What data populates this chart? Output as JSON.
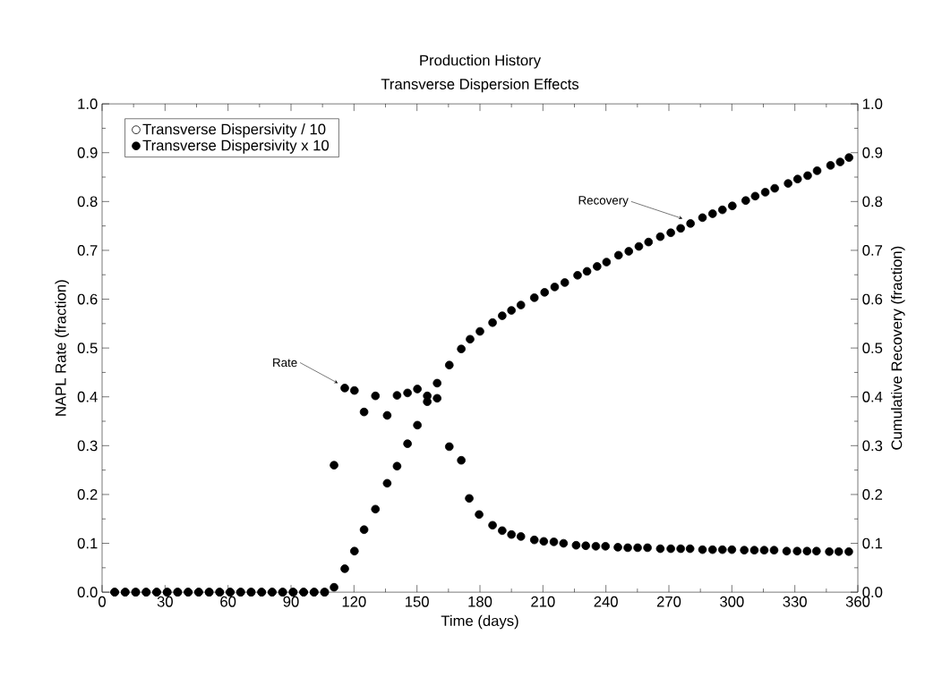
{
  "chart_data": {
    "type": "scatter",
    "title": "Production History",
    "subtitle": "Transverse Dispersion Effects",
    "xlabel": "Time (days)",
    "ylabel": "NAPL Rate (fraction)",
    "y2label": "Cumulative Recovery (fraction)",
    "marker": "circle",
    "legend": "top left",
    "xlim": [
      0,
      360
    ],
    "xticks": [
      0,
      30,
      60,
      90,
      120,
      150,
      180,
      210,
      240,
      270,
      300,
      330,
      360
    ],
    "ylim": [
      0,
      1
    ],
    "yticks": [
      {
        "value": 0,
        "label": "0.0"
      },
      0.1,
      0.2,
      0.3,
      0.4,
      0.5,
      0.6,
      0.7,
      0.8,
      0.9,
      {
        "value": 1,
        "label": "1.0"
      }
    ],
    "y2lim": [
      0,
      1
    ],
    "y2ticks": [
      {
        "value": 0,
        "label": "0.0"
      },
      0.1,
      0.2,
      0.3,
      0.4,
      0.5,
      0.6,
      0.7,
      0.8,
      0.9,
      {
        "value": 1,
        "label": "1.0"
      }
    ],
    "annotations": [
      "Rate",
      "Recovery"
    ],
    "series": [
      {
        "name": "Transverse Dispersivity / 10",
        "color": "#ffffff"
      },
      {
        "name": "Transverse Dispersivity x 10",
        "color": "#000000",
        "x": [
          6,
          11,
          16,
          21,
          26,
          31,
          36,
          41,
          46,
          51,
          56,
          61,
          66,
          71,
          76,
          81,
          86,
          91,
          96,
          101,
          106,
          110.5,
          115.6,
          120.2,
          124.8,
          130.2,
          135.8,
          140.5,
          145.5,
          150.2,
          154.9,
          159.6,
          165.4,
          171.1,
          174.9,
          179.6,
          186.0,
          190.6,
          195.0,
          199.5,
          205.9,
          210.4,
          215.2,
          219.8,
          225.8,
          230.4,
          235.2,
          239.8,
          245.7,
          250.4,
          255.1,
          259.8,
          265.9,
          270.9,
          275.6,
          280.1,
          286.0,
          290.8,
          295.5,
          300.0,
          305.9,
          310.7,
          315.4,
          320.1,
          326.1,
          331.1,
          335.8,
          340.3,
          346.4,
          350.9,
          355.7
        ],
        "values": [
          0,
          0,
          0,
          0,
          0,
          0,
          0,
          0,
          0,
          0,
          0,
          0,
          0,
          0,
          0,
          0,
          0,
          0,
          0,
          0,
          0,
          0.26,
          0.418,
          0.413,
          0.369,
          0.402,
          0.362,
          0.403,
          0.408,
          0.416,
          0.402,
          0.397,
          0.298,
          0.27,
          0.192,
          0.159,
          0.137,
          0.126,
          0.118,
          0.114,
          0.107,
          0.104,
          0.103,
          0.1,
          0.096,
          0.095,
          0.094,
          0.094,
          0.092,
          0.091,
          0.091,
          0.091,
          0.089,
          0.089,
          0.089,
          0.089,
          0.087,
          0.087,
          0.087,
          0.087,
          0.086,
          0.086,
          0.086,
          0.086,
          0.084,
          0.084,
          0.084,
          0.084,
          0.083,
          0.083,
          0.083
        ]
      },
      {
        "color": "#000000",
        "axis": "y2",
        "x": [
          6,
          11,
          16,
          21,
          26,
          31,
          36,
          41,
          46,
          51,
          56,
          61,
          66,
          71,
          76,
          81,
          86,
          91,
          96,
          101,
          106,
          110.5,
          115.6,
          120.2,
          124.8,
          130.2,
          135.8,
          140.5,
          145.5,
          150.2,
          154.9,
          159.6,
          165.4,
          171.1,
          175.3,
          180.0,
          186.0,
          190.6,
          195.0,
          199.5,
          205.9,
          210.8,
          215.6,
          220.4,
          226.5,
          231.0,
          235.8,
          240.3,
          246.0,
          250.9,
          255.7,
          260.3,
          265.9,
          270.9,
          275.6,
          280.3,
          286.0,
          290.8,
          295.5,
          300.2,
          306.6,
          311.1,
          315.9,
          320.4,
          326.8,
          331.3,
          336.1,
          340.6,
          347.0,
          351.6,
          355.8
        ],
        "values": [
          0,
          0,
          0,
          0,
          0,
          0,
          0,
          0,
          0,
          0,
          0,
          0,
          0,
          0,
          0,
          0,
          0,
          0,
          0,
          0,
          0,
          0.01,
          0.048,
          0.084,
          0.128,
          0.17,
          0.223,
          0.258,
          0.304,
          0.342,
          0.39,
          0.428,
          0.465,
          0.498,
          0.518,
          0.534,
          0.552,
          0.566,
          0.577,
          0.588,
          0.603,
          0.614,
          0.625,
          0.634,
          0.649,
          0.657,
          0.667,
          0.676,
          0.69,
          0.698,
          0.708,
          0.717,
          0.728,
          0.736,
          0.745,
          0.755,
          0.767,
          0.775,
          0.783,
          0.791,
          0.802,
          0.811,
          0.819,
          0.827,
          0.837,
          0.846,
          0.853,
          0.863,
          0.874,
          0.881,
          0.89
        ]
      }
    ]
  }
}
